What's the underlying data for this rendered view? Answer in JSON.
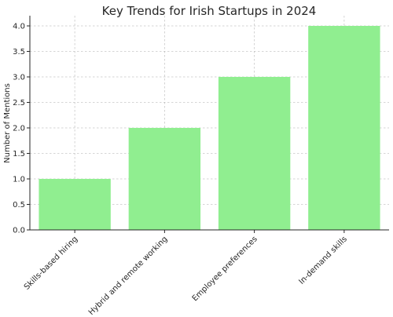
{
  "chart_data": {
    "type": "bar",
    "title": "Key Trends for Irish Startups in 2024",
    "xlabel": "",
    "ylabel": "Number of Mentions",
    "categories": [
      "Skills-based hiring",
      "Hybrid and remote working",
      "Employee preferences",
      "In-demand skills"
    ],
    "values": [
      1,
      2,
      3,
      4
    ],
    "ylim": [
      0,
      4.2
    ],
    "yticks": [
      "0.0",
      "0.5",
      "1.0",
      "1.5",
      "2.0",
      "2.5",
      "3.0",
      "3.5",
      "4.0"
    ],
    "grid": true,
    "bar_color": "#90ee90",
    "legend": "none"
  }
}
